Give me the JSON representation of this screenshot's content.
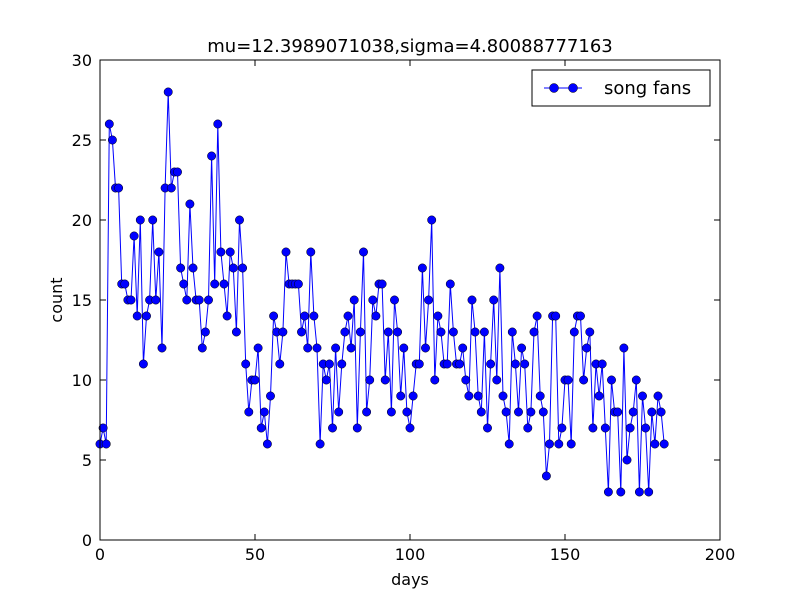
{
  "chart_data": {
    "type": "line",
    "title": "mu=12.3989071038,sigma=4.80088777163",
    "xlabel": "days",
    "ylabel": "count",
    "xlim": [
      0,
      200
    ],
    "ylim": [
      0,
      30
    ],
    "xticks": [
      0,
      50,
      100,
      150,
      200
    ],
    "yticks": [
      0,
      5,
      10,
      15,
      20,
      25,
      30
    ],
    "xtick_labels": [
      "0",
      "50",
      "100",
      "150",
      "200"
    ],
    "ytick_labels": [
      "0",
      "5",
      "10",
      "15",
      "20",
      "25",
      "30"
    ],
    "grid": false,
    "legend_position": "top-right",
    "series": [
      {
        "name": "song fans",
        "color": "#0000ff",
        "marker": "circle",
        "x": [
          0,
          1,
          2,
          3,
          4,
          5,
          6,
          7,
          8,
          9,
          10,
          11,
          12,
          13,
          14,
          15,
          16,
          17,
          18,
          19,
          20,
          21,
          22,
          23,
          24,
          25,
          26,
          27,
          28,
          29,
          30,
          31,
          32,
          33,
          34,
          35,
          36,
          37,
          38,
          39,
          40,
          41,
          42,
          43,
          44,
          45,
          46,
          47,
          48,
          49,
          50,
          51,
          52,
          53,
          54,
          55,
          56,
          57,
          58,
          59,
          60,
          61,
          62,
          63,
          64,
          65,
          66,
          67,
          68,
          69,
          70,
          71,
          72,
          73,
          74,
          75,
          76,
          77,
          78,
          79,
          80,
          81,
          82,
          83,
          84,
          85,
          86,
          87,
          88,
          89,
          90,
          91,
          92,
          93,
          94,
          95,
          96,
          97,
          98,
          99,
          100,
          101,
          102,
          103,
          104,
          105,
          106,
          107,
          108,
          109,
          110,
          111,
          112,
          113,
          114,
          115,
          116,
          117,
          118,
          119,
          120,
          121,
          122,
          123,
          124,
          125,
          126,
          127,
          128,
          129,
          130,
          131,
          132,
          133,
          134,
          135,
          136,
          137,
          138,
          139,
          140,
          141,
          142,
          143,
          144,
          145,
          146,
          147,
          148,
          149,
          150,
          151,
          152,
          153,
          154,
          155,
          156,
          157,
          158,
          159,
          160,
          161,
          162,
          163,
          164,
          165,
          166,
          167,
          168,
          169,
          170,
          171,
          172,
          173,
          174,
          175,
          176,
          177,
          178,
          179,
          180,
          181,
          182
        ],
        "values": [
          6,
          7,
          6,
          26,
          25,
          22,
          22,
          16,
          16,
          15,
          15,
          19,
          14,
          20,
          11,
          14,
          15,
          20,
          15,
          18,
          12,
          22,
          28,
          22,
          23,
          23,
          17,
          16,
          15,
          21,
          17,
          15,
          15,
          12,
          13,
          15,
          24,
          16,
          26,
          18,
          16,
          14,
          18,
          17,
          13,
          20,
          17,
          11,
          8,
          10,
          10,
          12,
          7,
          8,
          6,
          9,
          14,
          13,
          11,
          13,
          18,
          16,
          16,
          16,
          16,
          13,
          14,
          12,
          18,
          14,
          12,
          6,
          11,
          10,
          11,
          7,
          12,
          8,
          11,
          13,
          14,
          12,
          15,
          7,
          13,
          18,
          8,
          10,
          15,
          14,
          16,
          16,
          10,
          13,
          8,
          15,
          13,
          9,
          12,
          8,
          7,
          9,
          11,
          11,
          17,
          12,
          15,
          20,
          10,
          14,
          13,
          11,
          11,
          16,
          13,
          11,
          11,
          12,
          10,
          9,
          15,
          13,
          9,
          8,
          13,
          7,
          11,
          15,
          10,
          17,
          9,
          8,
          6,
          13,
          11,
          8,
          12,
          11,
          7,
          8,
          13,
          14,
          9,
          8,
          4,
          6,
          14,
          14,
          6,
          7,
          10,
          10,
          6,
          13,
          14,
          14,
          10,
          12,
          13,
          7,
          11,
          9,
          11,
          7,
          3,
          10,
          8,
          8,
          3,
          12,
          5,
          7,
          8,
          10,
          3,
          9,
          7,
          3,
          8,
          6,
          9,
          8,
          6
        ]
      }
    ]
  }
}
